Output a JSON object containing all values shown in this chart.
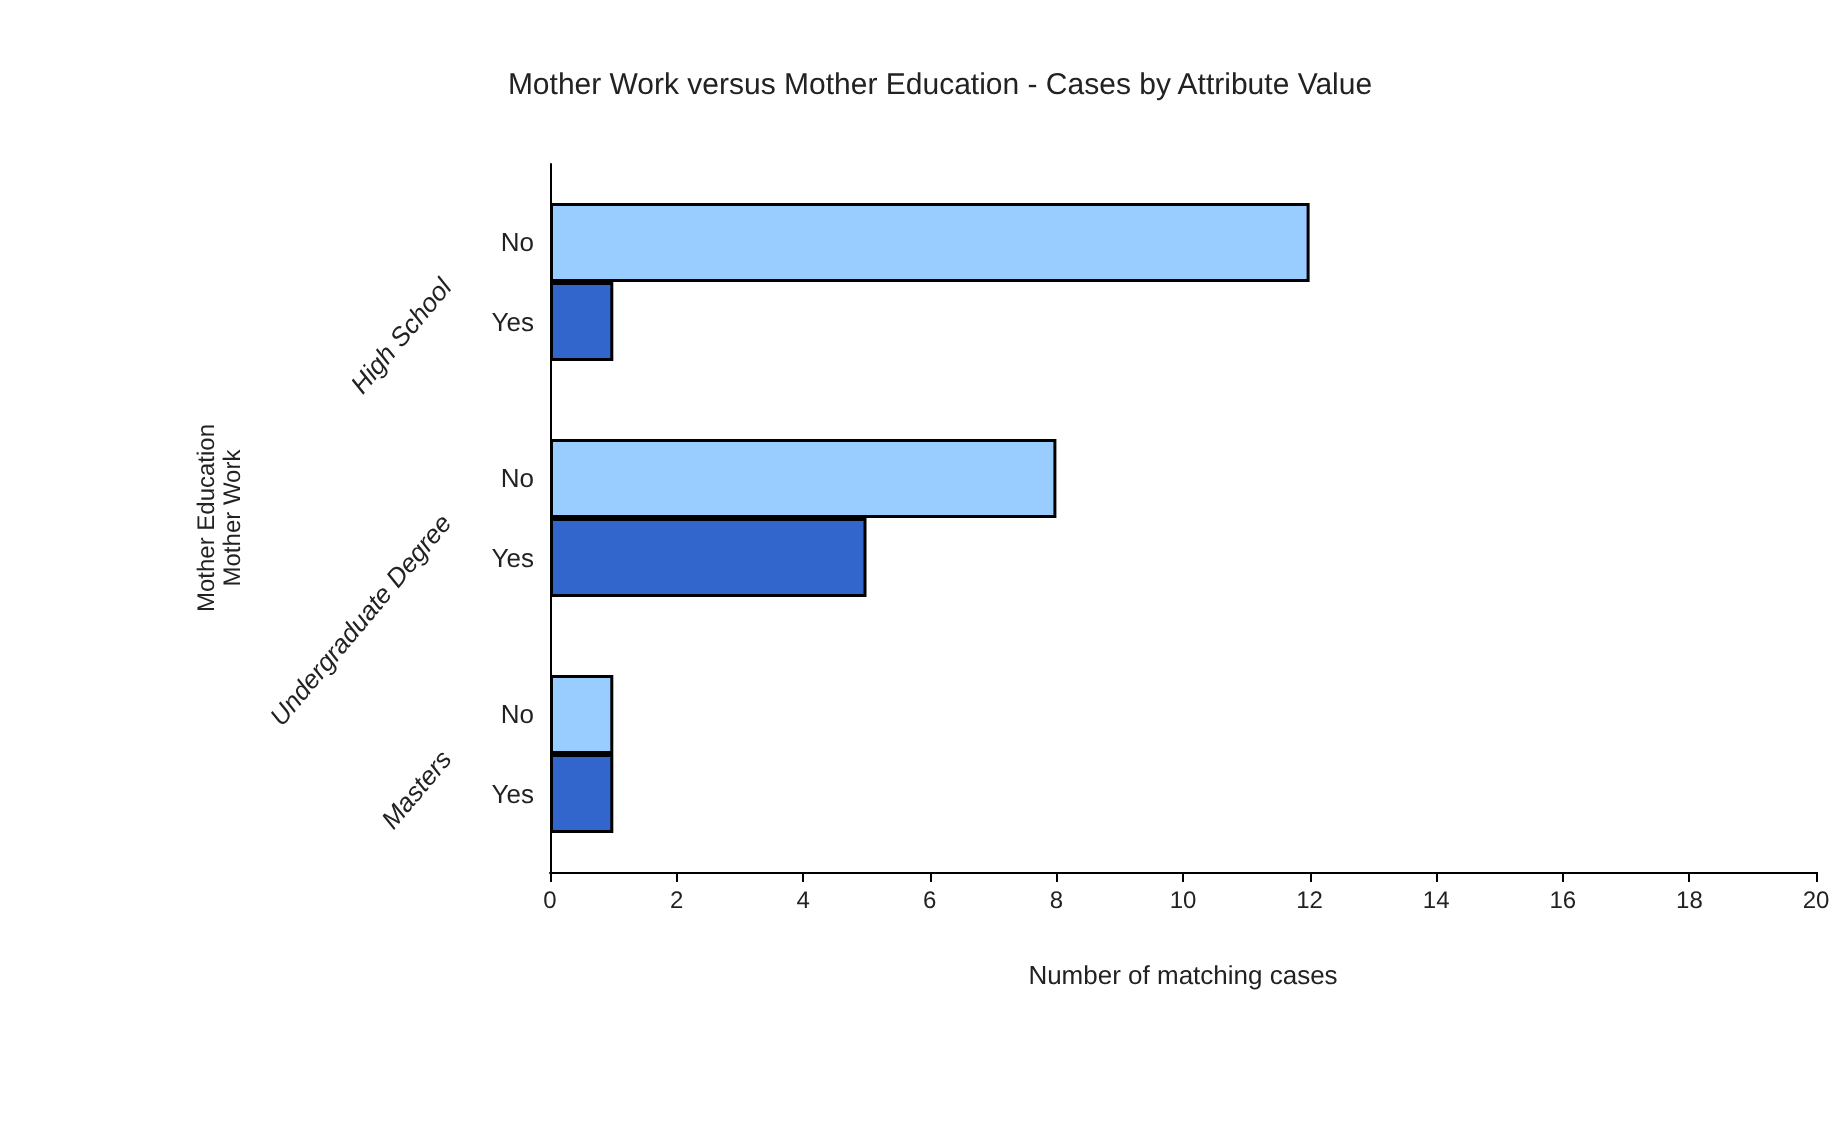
{
  "chart_data": {
    "type": "bar",
    "orientation": "horizontal",
    "title": "Mother Work versus Mother Education - Cases by Attribute Value",
    "xlabel": "Number of matching cases",
    "ylabel": "Mother Education\nMother Work",
    "categories": [
      "High School",
      "Undergraduate Degree",
      "Masters"
    ],
    "series": [
      {
        "name": "No",
        "color": "#99ccff",
        "values": [
          12,
          8,
          1
        ]
      },
      {
        "name": "Yes",
        "color": "#3366cc",
        "values": [
          1,
          5,
          1
        ]
      }
    ],
    "xlim": [
      0,
      20
    ],
    "xticks": [
      0,
      2,
      4,
      6,
      8,
      10,
      12,
      14,
      16,
      18,
      20
    ],
    "legend": false
  }
}
